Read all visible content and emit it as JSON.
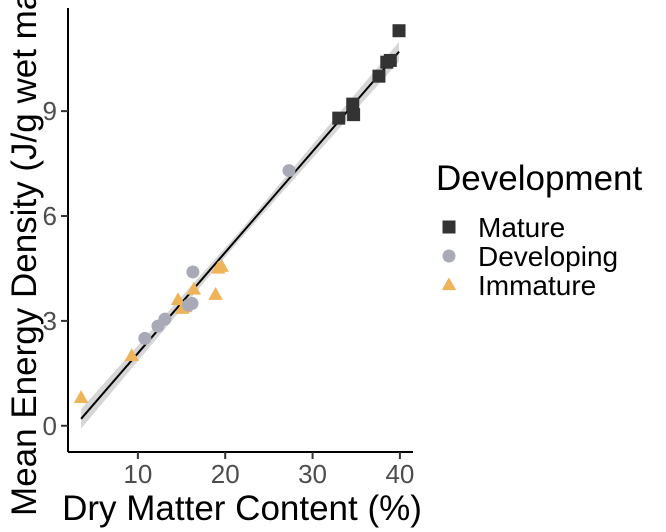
{
  "chart_data": {
    "type": "scatter",
    "title": "",
    "xlabel": "Dry Matter Content (%)",
    "ylabel": "Mean Energy Density (J/g wet mass)",
    "xlim": [
      2,
      41.5
    ],
    "ylim": [
      -0.75,
      11.95
    ],
    "x_ticks": [
      10,
      20,
      30,
      40
    ],
    "y_ticks": [
      0,
      3,
      6,
      9
    ],
    "grid": false,
    "legend": {
      "title": "Development",
      "position": "right"
    },
    "series": [
      {
        "name": "Mature",
        "marker": "square",
        "color": "#333333",
        "points": [
          {
            "x": 33.0,
            "y": 8.8
          },
          {
            "x": 34.6,
            "y": 9.2
          },
          {
            "x": 34.7,
            "y": 8.9
          },
          {
            "x": 37.6,
            "y": 10.0
          },
          {
            "x": 38.5,
            "y": 10.4
          },
          {
            "x": 38.9,
            "y": 10.45
          },
          {
            "x": 39.9,
            "y": 11.3
          }
        ]
      },
      {
        "name": "Developing",
        "marker": "circle",
        "color": "#a8aab8",
        "points": [
          {
            "x": 10.8,
            "y": 2.5
          },
          {
            "x": 12.3,
            "y": 2.85
          },
          {
            "x": 13.1,
            "y": 3.05
          },
          {
            "x": 15.8,
            "y": 3.45
          },
          {
            "x": 16.2,
            "y": 3.5
          },
          {
            "x": 16.3,
            "y": 4.4
          },
          {
            "x": 27.3,
            "y": 7.3
          }
        ]
      },
      {
        "name": "Immature",
        "marker": "triangle",
        "color": "#efb45a",
        "points": [
          {
            "x": 3.5,
            "y": 0.8
          },
          {
            "x": 9.3,
            "y": 2.0
          },
          {
            "x": 14.6,
            "y": 3.6
          },
          {
            "x": 15.1,
            "y": 3.35
          },
          {
            "x": 15.4,
            "y": 3.4
          },
          {
            "x": 16.4,
            "y": 3.9
          },
          {
            "x": 18.9,
            "y": 3.75
          },
          {
            "x": 19.2,
            "y": 4.5
          },
          {
            "x": 19.6,
            "y": 4.55
          }
        ]
      }
    ],
    "fit_line": {
      "color": "#000000",
      "band_color": "#c8c8c8",
      "x": [
        3.5,
        39.9
      ],
      "y": [
        0.2,
        10.7
      ],
      "band_halfwidth": [
        0.28,
        0.12,
        0.28
      ]
    }
  }
}
